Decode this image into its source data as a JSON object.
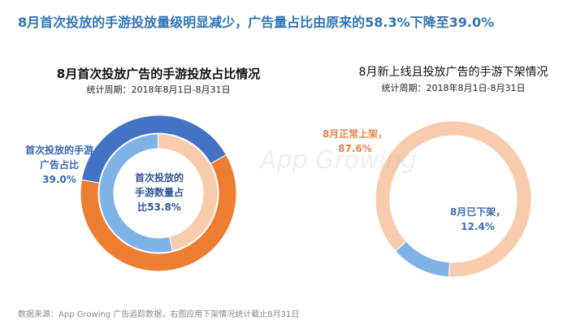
{
  "title": "8月首次投放的手游投放量级明显减少，广告量占比由原来的58.3%下降至39.0%",
  "watermark": "App Growing",
  "footer": "数据来源：App Growing 广告追踪数据，右图应用下架情况统计截止8月31日",
  "chart_data": [
    {
      "type": "donut",
      "title": "8月首次投放广告的手游投放占比情况",
      "subtitle": "统计周期：2018年8月1日-8月31日",
      "rings": [
        {
          "labels": [
            "首次投放的手游广告占比",
            null
          ],
          "values": [
            39.0,
            61.0
          ],
          "value_labels": [
            "39.0%",
            null
          ],
          "colors": [
            "#4472c4",
            "#ed7d31"
          ]
        },
        {
          "labels": [
            "首次投放的手游数量占比",
            null
          ],
          "values": [
            53.8,
            46.2
          ],
          "value_labels": [
            "53.8%",
            null
          ],
          "colors": [
            "#7fb2e6",
            "#f8cbad"
          ]
        }
      ]
    },
    {
      "type": "donut",
      "title": "8月新上线且投放广告的手游下架情况",
      "subtitle": "统计周期：2018年8月1日-8月31日",
      "rings": [
        {
          "labels": [
            "8月正常上架，",
            "8月已下架，"
          ],
          "values": [
            87.6,
            12.4
          ],
          "value_labels": [
            "87.6%",
            "12.4%"
          ],
          "colors": [
            "#f8cbad",
            "#7fb2e6"
          ]
        }
      ]
    }
  ]
}
